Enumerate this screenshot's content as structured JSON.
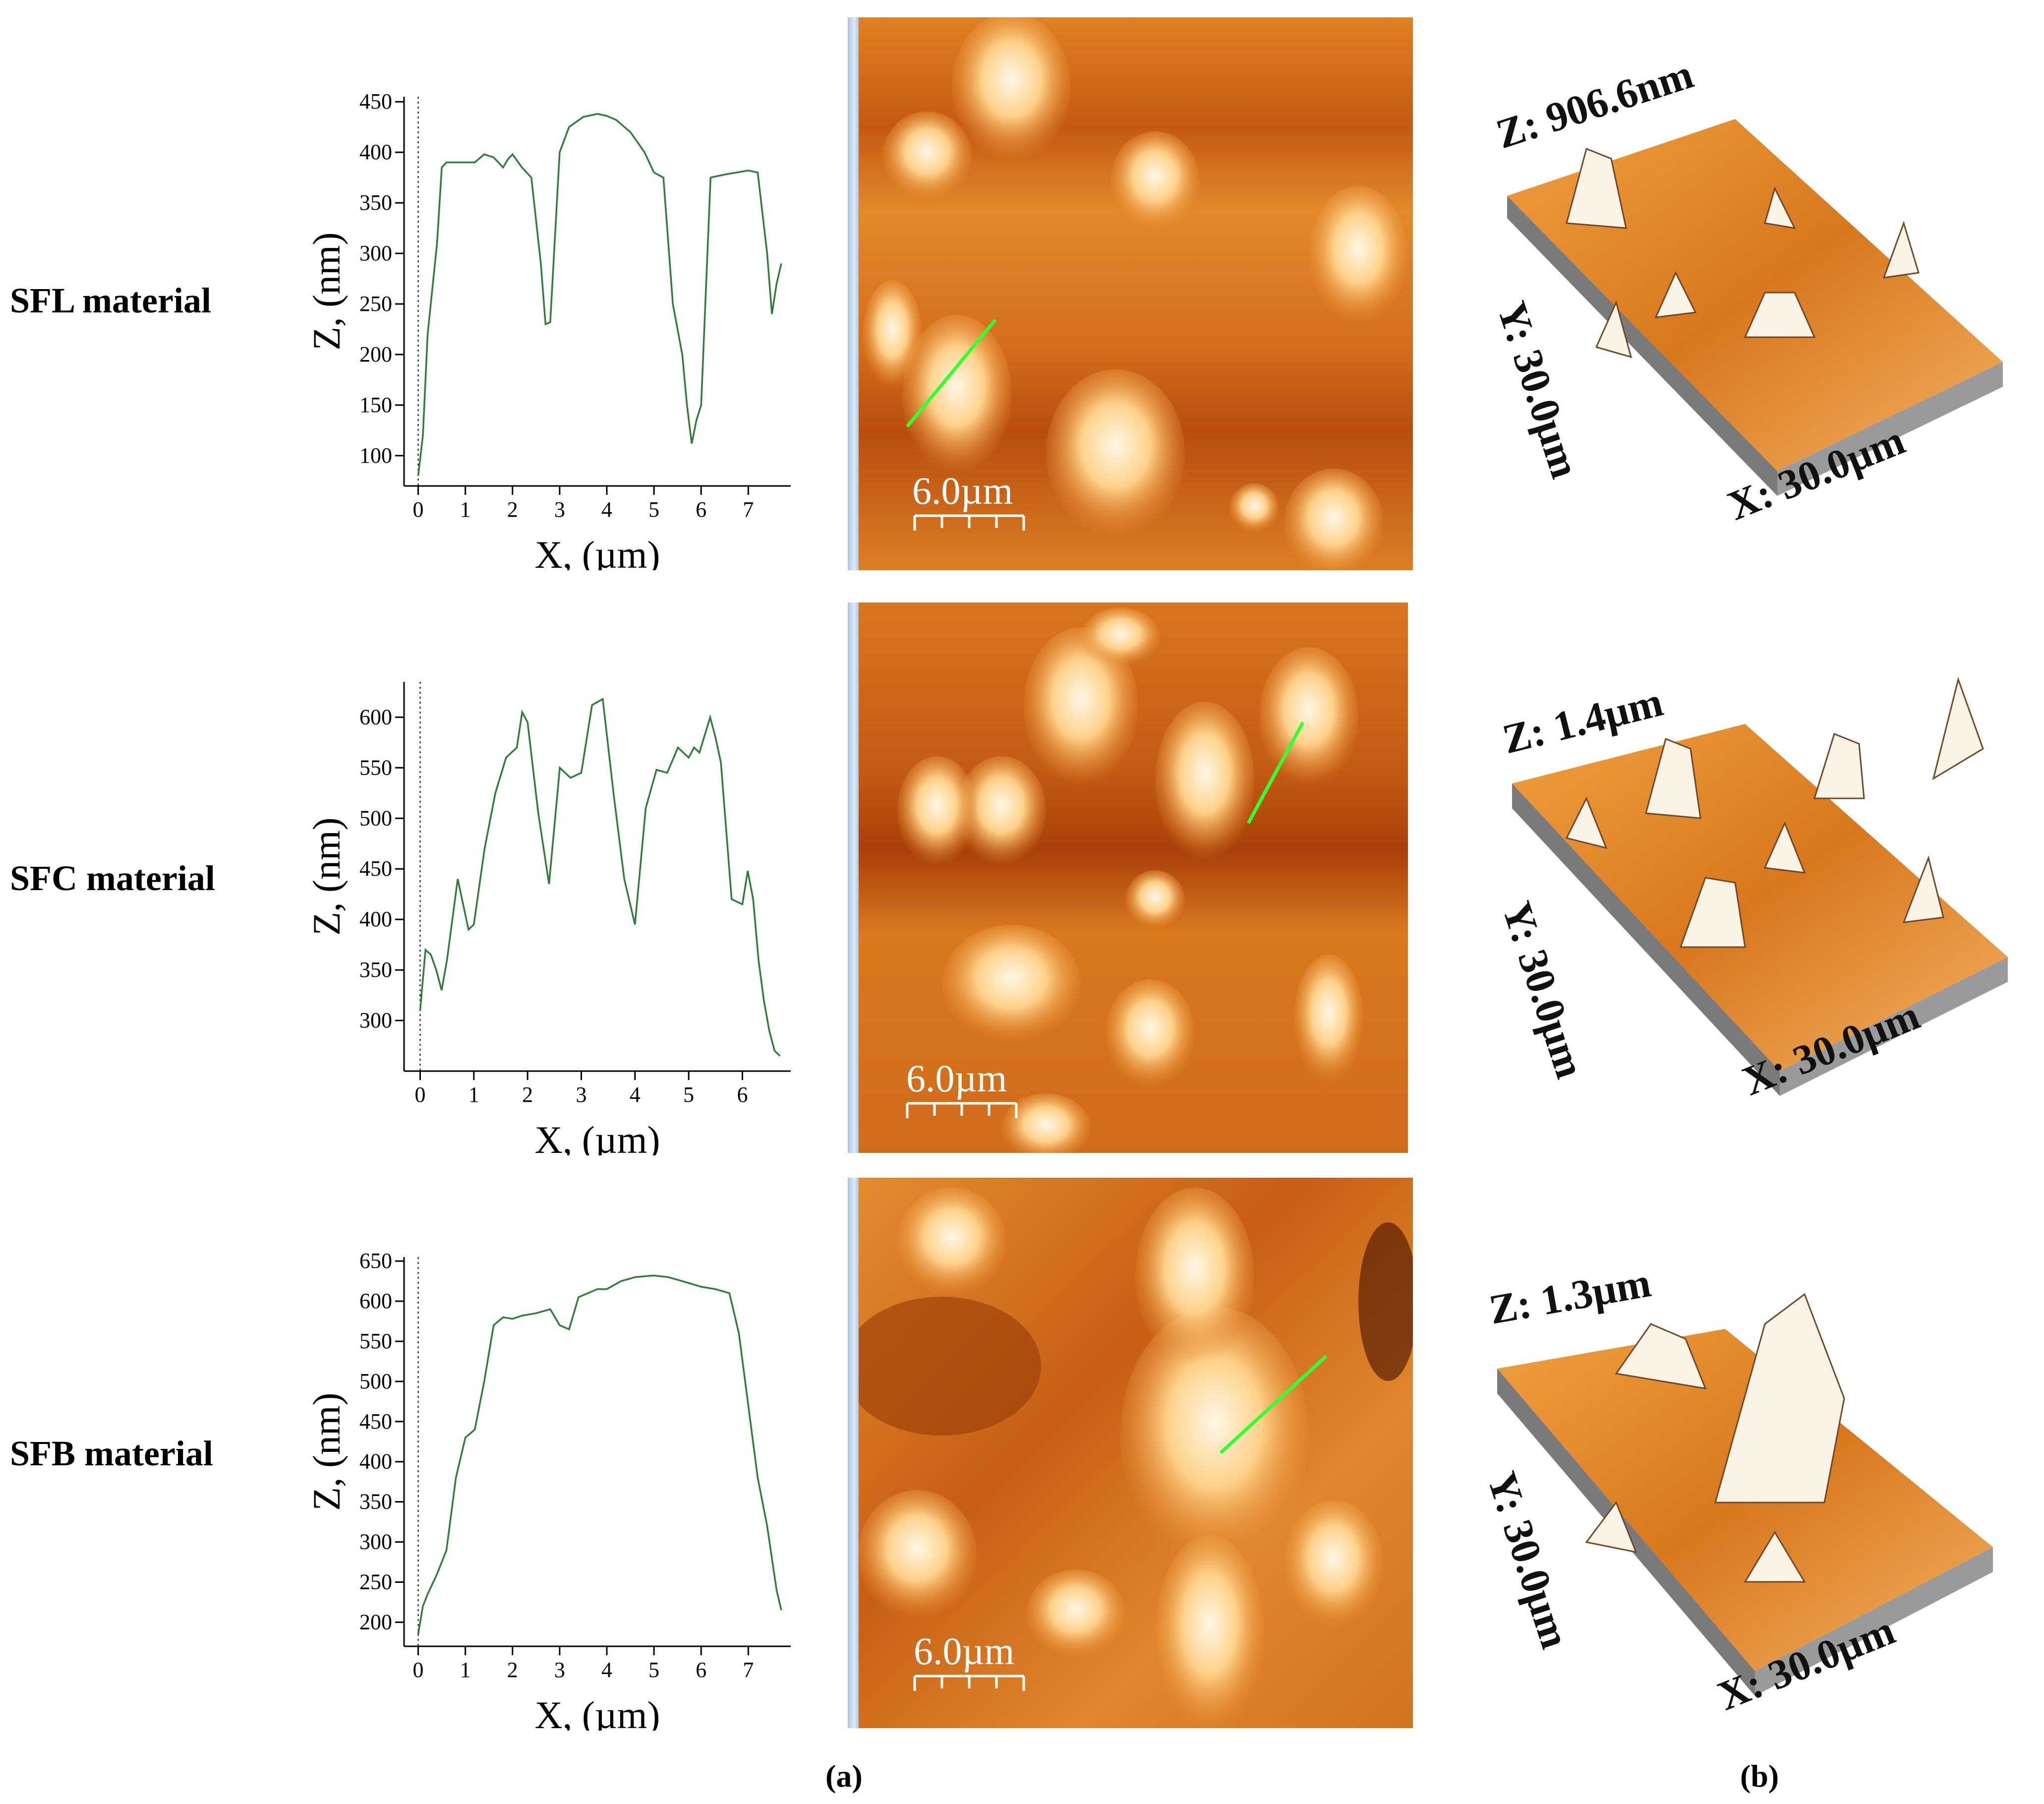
{
  "row_labels": [
    "SFL material",
    "SFC material",
    "SFB material"
  ],
  "panel_labels": {
    "a": "(a)",
    "b": "(b)"
  },
  "afm_scale_label": "6.0µm",
  "surface3d": [
    {
      "z": "Z: 906.6nm",
      "y": "Y: 30.0µm",
      "x": "X: 30.0µm"
    },
    {
      "z": "Z: 1.4µm",
      "y": "Y: 30.0µm",
      "x": "X: 30.0µm"
    },
    {
      "z": "Z: 1.3µm",
      "y": "Y: 30.0µm",
      "x": "X: 30.0µm"
    }
  ],
  "colors": {
    "profile_line": "#2e7d3a",
    "scan_line": "#33ff33",
    "afm_base": "#d8731c"
  },
  "chart_data": [
    {
      "type": "line",
      "xlabel": "X, (µm)",
      "ylabel": "Z, (nm)",
      "xlim": [
        -0.3,
        7.9
      ],
      "ylim": [
        70,
        455
      ],
      "xticks": [
        0,
        1,
        2,
        3,
        4,
        5,
        6,
        7
      ],
      "yticks": [
        100,
        150,
        200,
        250,
        300,
        350,
        400,
        450
      ],
      "series": [
        {
          "x": [
            0,
            0.1,
            0.2,
            0.3,
            0.4,
            0.5,
            0.6,
            1.0,
            1.2,
            1.4,
            1.6,
            1.8,
            1.9,
            2.0,
            2.2,
            2.4,
            2.6,
            2.7,
            2.8,
            3.0,
            3.2,
            3.5,
            3.8,
            4.0,
            4.2,
            4.5,
            4.8,
            5.0,
            5.2,
            5.4,
            5.6,
            5.7,
            5.8,
            5.9,
            6.0,
            6.2,
            6.5,
            7.0,
            7.2,
            7.4,
            7.5,
            7.6,
            7.7
          ],
          "y": [
            80,
            120,
            220,
            265,
            310,
            385,
            390,
            390,
            390,
            398,
            395,
            385,
            393,
            398,
            385,
            375,
            290,
            230,
            232,
            400,
            425,
            435,
            438,
            436,
            432,
            420,
            400,
            380,
            375,
            250,
            200,
            150,
            112,
            135,
            150,
            375,
            378,
            382,
            380,
            300,
            240,
            270,
            290
          ]
        }
      ]
    },
    {
      "type": "line",
      "xlabel": "X, (µm)",
      "ylabel": "Z, (nm)",
      "xlim": [
        -0.3,
        6.9
      ],
      "ylim": [
        250,
        635
      ],
      "xticks": [
        0,
        1,
        2,
        3,
        4,
        5,
        6
      ],
      "yticks": [
        300,
        350,
        400,
        450,
        500,
        550,
        600
      ],
      "series": [
        {
          "x": [
            0,
            0.1,
            0.2,
            0.3,
            0.4,
            0.5,
            0.7,
            0.9,
            1.0,
            1.2,
            1.4,
            1.6,
            1.8,
            1.9,
            2.0,
            2.2,
            2.4,
            2.6,
            2.8,
            3.0,
            3.2,
            3.4,
            3.6,
            3.8,
            4.0,
            4.2,
            4.4,
            4.6,
            4.8,
            5.0,
            5.1,
            5.2,
            5.4,
            5.5,
            5.6,
            5.8,
            6.0,
            6.1,
            6.2,
            6.3,
            6.4,
            6.5,
            6.6,
            6.7
          ],
          "y": [
            310,
            370,
            365,
            350,
            330,
            360,
            440,
            390,
            395,
            470,
            525,
            560,
            570,
            605,
            595,
            505,
            435,
            550,
            540,
            545,
            612,
            618,
            525,
            440,
            395,
            510,
            548,
            545,
            570,
            560,
            570,
            565,
            600,
            580,
            555,
            420,
            415,
            448,
            420,
            360,
            320,
            290,
            270,
            265
          ]
        }
      ]
    },
    {
      "type": "line",
      "xlabel": "X, (µm)",
      "ylabel": "Z, (nm)",
      "xlim": [
        -0.3,
        7.9
      ],
      "ylim": [
        170,
        655
      ],
      "xticks": [
        0,
        1,
        2,
        3,
        4,
        5,
        6,
        7
      ],
      "yticks": [
        200,
        250,
        300,
        350,
        400,
        450,
        500,
        550,
        600,
        650
      ],
      "series": [
        {
          "x": [
            0,
            0.1,
            0.2,
            0.4,
            0.6,
            0.8,
            1.0,
            1.2,
            1.4,
            1.6,
            1.8,
            2.0,
            2.2,
            2.5,
            2.8,
            3.0,
            3.2,
            3.4,
            3.6,
            3.8,
            4.0,
            4.3,
            4.6,
            5.0,
            5.3,
            5.6,
            6.0,
            6.3,
            6.6,
            6.8,
            7.0,
            7.2,
            7.4,
            7.6,
            7.7
          ],
          "y": [
            185,
            220,
            235,
            260,
            290,
            380,
            430,
            440,
            500,
            570,
            580,
            578,
            582,
            585,
            590,
            570,
            565,
            605,
            610,
            615,
            615,
            625,
            630,
            632,
            630,
            625,
            618,
            615,
            610,
            560,
            470,
            380,
            320,
            240,
            215
          ]
        }
      ]
    }
  ]
}
